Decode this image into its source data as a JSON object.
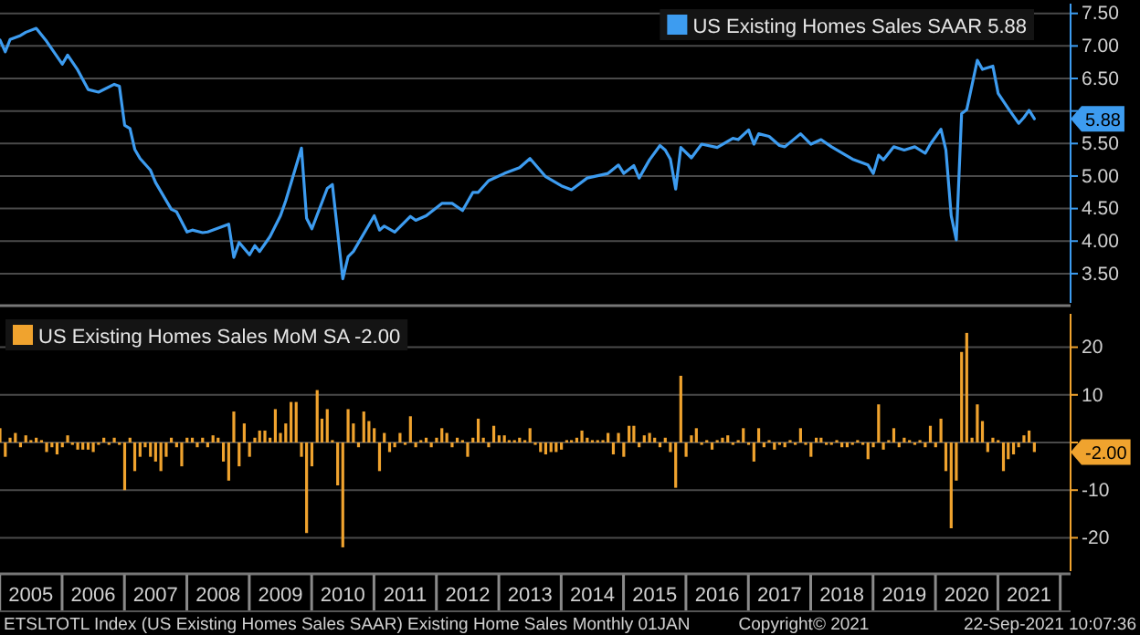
{
  "chart_data": [
    {
      "type": "line",
      "xlim": [
        "2005-01",
        "2022-03"
      ],
      "ylim": [
        3.05,
        7.65
      ],
      "yticks": [
        {
          "value": 3.5,
          "label": "3.50"
        },
        {
          "value": 4,
          "label": "4.00"
        },
        {
          "value": 4.5,
          "label": "4.50"
        },
        {
          "value": 5,
          "label": "5.00"
        },
        {
          "value": 5.5,
          "label": "5.50"
        },
        {
          "value": 6,
          "label": null
        },
        {
          "value": 6.5,
          "label": "6.50"
        },
        {
          "value": 7,
          "label": "7.00"
        },
        {
          "value": 7.5,
          "label": "7.50"
        }
      ],
      "grid": "y",
      "legend": "top right",
      "tick_labels": "y",
      "series": [
        {
          "name": "US Existing Homes Sales SAAR 5.88",
          "color": "#3d9cf0",
          "x": [
            "2005-01",
            "2005-02",
            "2005-03",
            "2005-05",
            "2005-06",
            "2005-08",
            "2005-10",
            "2006-01",
            "2006-02",
            "2006-04",
            "2006-06",
            "2006-08",
            "2006-11",
            "2006-12",
            "2007-01",
            "2007-02",
            "2007-03",
            "2007-04",
            "2007-06",
            "2007-07",
            "2007-10",
            "2007-11",
            "2008-01",
            "2008-02",
            "2008-04",
            "2008-05",
            "2008-09",
            "2008-10",
            "2008-11",
            "2009-01",
            "2009-02",
            "2009-03",
            "2009-05",
            "2009-07",
            "2009-08",
            "2009-11",
            "2009-12",
            "2010-01",
            "2010-04",
            "2010-05",
            "2010-07",
            "2010-08",
            "2010-09",
            "2011-01",
            "2011-02",
            "2011-03",
            "2011-05",
            "2011-08",
            "2011-09",
            "2011-11",
            "2012-02",
            "2012-04",
            "2012-06",
            "2012-08",
            "2012-09",
            "2012-11",
            "2013-02",
            "2013-05",
            "2013-07",
            "2013-10",
            "2014-01",
            "2014-03",
            "2014-06",
            "2014-10",
            "2014-12",
            "2015-01",
            "2015-03",
            "2015-04",
            "2015-06",
            "2015-08",
            "2015-09",
            "2015-10",
            "2015-11",
            "2015-12",
            "2016-02",
            "2016-04",
            "2016-07",
            "2016-10",
            "2016-11",
            "2017-01",
            "2017-02",
            "2017-03",
            "2017-05",
            "2017-07",
            "2017-08",
            "2017-11",
            "2018-01",
            "2018-03",
            "2018-05",
            "2018-09",
            "2018-12",
            "2019-01",
            "2019-02",
            "2019-03",
            "2019-05",
            "2019-07",
            "2019-09",
            "2019-11",
            "2019-12",
            "2020-02",
            "2020-03",
            "2020-04",
            "2020-05",
            "2020-06",
            "2020-07",
            "2020-09",
            "2020-10",
            "2020-12",
            "2021-01",
            "2021-03",
            "2021-05",
            "2021-06",
            "2021-07",
            "2021-08"
          ],
          "values": [
            7.09,
            6.91,
            7.1,
            7.16,
            7.21,
            7.27,
            7.07,
            6.72,
            6.86,
            6.63,
            6.33,
            6.29,
            6.41,
            6.38,
            5.78,
            5.73,
            5.41,
            5.27,
            5.09,
            4.9,
            4.49,
            4.45,
            4.14,
            4.17,
            4.13,
            4.14,
            4.26,
            3.75,
            3.98,
            3.79,
            3.93,
            3.84,
            4.07,
            4.39,
            4.62,
            5.43,
            4.35,
            4.19,
            4.81,
            4.87,
            3.42,
            3.76,
            3.84,
            4.39,
            4.17,
            4.23,
            4.14,
            4.38,
            4.32,
            4.39,
            4.58,
            4.58,
            4.47,
            4.75,
            4.75,
            4.93,
            5.04,
            5.13,
            5.27,
            4.99,
            4.85,
            4.79,
            4.97,
            5.04,
            5.17,
            5.04,
            5.16,
            4.97,
            5.25,
            5.47,
            5.4,
            5.26,
            4.8,
            5.44,
            5.28,
            5.49,
            5.44,
            5.58,
            5.56,
            5.71,
            5.49,
            5.65,
            5.61,
            5.47,
            5.45,
            5.65,
            5.49,
            5.56,
            5.45,
            5.26,
            5.17,
            5.04,
            5.32,
            5.25,
            5.45,
            5.4,
            5.45,
            5.35,
            5.49,
            5.72,
            5.4,
            4.39,
            4.02,
            5.96,
            6.02,
            6.78,
            6.64,
            6.69,
            6.27,
            6.04,
            5.81,
            5.9,
            6.01,
            5.88
          ]
        }
      ],
      "annotations": [
        "5.88"
      ]
    },
    {
      "type": "bar",
      "xlim": [
        "2005-01",
        "2022-03"
      ],
      "ylim": [
        -27,
        27
      ],
      "yticks": [
        -20,
        -10,
        {
          "value": 0,
          "label": null
        },
        10,
        20
      ],
      "grid": "y",
      "legend": "top left",
      "xticks": [
        {
          "value": "2005-07",
          "label": "2005"
        },
        {
          "value": "2006-07",
          "label": "2006"
        },
        {
          "value": "2007-07",
          "label": "2007"
        },
        {
          "value": "2008-07",
          "label": "2008"
        },
        {
          "value": "2009-07",
          "label": "2009"
        },
        {
          "value": "2010-07",
          "label": "2010"
        },
        {
          "value": "2011-07",
          "label": "2011"
        },
        {
          "value": "2012-07",
          "label": "2012"
        },
        {
          "value": "2013-07",
          "label": "2013"
        },
        {
          "value": "2014-07",
          "label": "2014"
        },
        {
          "value": "2015-07",
          "label": "2015"
        },
        {
          "value": "2016-07",
          "label": "2016"
        },
        {
          "value": "2017-07",
          "label": "2017"
        },
        {
          "value": "2018-07",
          "label": "2018"
        },
        {
          "value": "2019-07",
          "label": "2019"
        },
        {
          "value": "2020-07",
          "label": "2020"
        },
        {
          "value": "2021-07",
          "label": "2021"
        }
      ],
      "series": [
        {
          "name": "US Existing Homes Sales MoM SA -2.00",
          "color": "#f0a32e",
          "x": [
            "2005-01",
            "2005-02",
            "2005-03",
            "2005-04",
            "2005-05",
            "2005-06",
            "2005-07",
            "2005-08",
            "2005-09",
            "2005-10",
            "2005-11",
            "2005-12",
            "2006-01",
            "2006-02",
            "2006-03",
            "2006-04",
            "2006-05",
            "2006-06",
            "2006-07",
            "2006-08",
            "2006-09",
            "2006-10",
            "2006-11",
            "2006-12",
            "2007-01",
            "2007-02",
            "2007-03",
            "2007-04",
            "2007-05",
            "2007-06",
            "2007-07",
            "2007-08",
            "2007-09",
            "2007-10",
            "2007-11",
            "2007-12",
            "2008-01",
            "2008-02",
            "2008-03",
            "2008-04",
            "2008-05",
            "2008-06",
            "2008-07",
            "2008-08",
            "2008-09",
            "2008-10",
            "2008-11",
            "2008-12",
            "2009-01",
            "2009-02",
            "2009-03",
            "2009-04",
            "2009-05",
            "2009-06",
            "2009-07",
            "2009-08",
            "2009-09",
            "2009-10",
            "2009-11",
            "2009-12",
            "2010-01",
            "2010-02",
            "2010-03",
            "2010-04",
            "2010-05",
            "2010-06",
            "2010-07",
            "2010-08",
            "2010-09",
            "2010-10",
            "2010-11",
            "2010-12",
            "2011-01",
            "2011-02",
            "2011-03",
            "2011-04",
            "2011-05",
            "2011-06",
            "2011-07",
            "2011-08",
            "2011-09",
            "2011-10",
            "2011-11",
            "2011-12",
            "2012-01",
            "2012-02",
            "2012-03",
            "2012-04",
            "2012-05",
            "2012-06",
            "2012-07",
            "2012-08",
            "2012-09",
            "2012-10",
            "2012-11",
            "2012-12",
            "2013-01",
            "2013-02",
            "2013-03",
            "2013-04",
            "2013-05",
            "2013-06",
            "2013-07",
            "2013-08",
            "2013-09",
            "2013-10",
            "2013-11",
            "2013-12",
            "2014-01",
            "2014-02",
            "2014-03",
            "2014-04",
            "2014-05",
            "2014-06",
            "2014-07",
            "2014-08",
            "2014-09",
            "2014-10",
            "2014-11",
            "2014-12",
            "2015-01",
            "2015-02",
            "2015-03",
            "2015-04",
            "2015-05",
            "2015-06",
            "2015-07",
            "2015-08",
            "2015-09",
            "2015-10",
            "2015-11",
            "2015-12",
            "2016-01",
            "2016-02",
            "2016-03",
            "2016-04",
            "2016-05",
            "2016-06",
            "2016-07",
            "2016-08",
            "2016-09",
            "2016-10",
            "2016-11",
            "2016-12",
            "2017-01",
            "2017-02",
            "2017-03",
            "2017-04",
            "2017-05",
            "2017-06",
            "2017-07",
            "2017-08",
            "2017-09",
            "2017-10",
            "2017-11",
            "2017-12",
            "2018-01",
            "2018-02",
            "2018-03",
            "2018-04",
            "2018-05",
            "2018-06",
            "2018-07",
            "2018-08",
            "2018-09",
            "2018-10",
            "2018-11",
            "2018-12",
            "2019-01",
            "2019-02",
            "2019-03",
            "2019-04",
            "2019-05",
            "2019-06",
            "2019-07",
            "2019-08",
            "2019-09",
            "2019-10",
            "2019-11",
            "2019-12",
            "2020-01",
            "2020-02",
            "2020-03",
            "2020-04",
            "2020-05",
            "2020-06",
            "2020-07",
            "2020-08",
            "2020-09",
            "2020-10",
            "2020-11",
            "2020-12",
            "2021-01",
            "2021-02",
            "2021-03",
            "2021-04",
            "2021-05",
            "2021-06",
            "2021-07",
            "2021-08"
          ],
          "values": [
            3,
            -3,
            1,
            2,
            -1,
            1.5,
            0.5,
            1,
            0.5,
            -2,
            -1,
            -2.5,
            -1,
            1.5,
            -0.5,
            -1.5,
            -1.5,
            -1.5,
            -2,
            -0.5,
            1,
            -0.5,
            1,
            -0.5,
            -10,
            1,
            -6,
            -3,
            -1,
            -3,
            -4,
            -6,
            -3,
            1,
            -1,
            -5,
            1,
            1,
            -1,
            1,
            -1,
            1.5,
            1,
            -4,
            -8,
            6.5,
            -5,
            4,
            -3,
            1,
            2.5,
            2.5,
            1,
            7,
            2,
            4,
            8.5,
            8.5,
            -3,
            -19,
            -5,
            11,
            5,
            7,
            0.5,
            -9,
            -22,
            7,
            4,
            -1,
            6.5,
            4.5,
            3,
            -6,
            2,
            -2,
            -1,
            2,
            -0.5,
            5.5,
            -1,
            0.5,
            1,
            -1,
            1,
            3,
            2,
            -1,
            1,
            0.5,
            -3,
            1,
            5,
            1,
            -1,
            3.5,
            1.5,
            1.5,
            0.5,
            0.5,
            1,
            0.5,
            3,
            -0.5,
            -2,
            -2.5,
            -2,
            -2,
            -1.5,
            0.5,
            0.5,
            1,
            2.5,
            1,
            0.5,
            0.5,
            0.5,
            2,
            -2.5,
            2,
            -3,
            3.5,
            3.5,
            -1,
            1.5,
            2,
            1,
            -1,
            1,
            -2,
            -9.5,
            14,
            -3,
            1.5,
            3,
            -0.5,
            0.5,
            -1.5,
            0.5,
            1,
            1.5,
            -0.5,
            0.5,
            3,
            -0.5,
            -4,
            3,
            -1,
            0.5,
            -1.5,
            -0.5,
            -1,
            0.5,
            -0.5,
            3,
            -0.5,
            -3,
            1,
            1,
            -0.5,
            -0.5,
            0.5,
            -1,
            -1,
            -0.5,
            0.5,
            -0.5,
            -3.5,
            -1,
            8,
            -1.5,
            0.5,
            3,
            -1,
            1,
            0.5,
            -0.5,
            0.5,
            -1,
            3.5,
            -1,
            5,
            -6,
            -18,
            -8,
            19,
            23,
            1,
            8,
            4.5,
            -2,
            1,
            0.5,
            -6,
            -3.5,
            -2.5,
            -1,
            1.5,
            2.5,
            -2
          ]
        }
      ],
      "annotations": [
        "-2.00",
        "ETSLTOTL Index (US Existing Homes Sales SAAR) Existing Home Sales  Monthly 01JAN",
        "Copyright© 2021",
        "22-Sep-2021 10:07:36"
      ]
    }
  ]
}
